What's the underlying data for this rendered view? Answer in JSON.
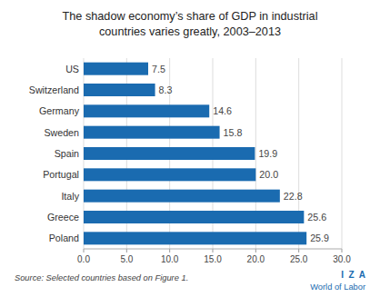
{
  "chart_data": {
    "type": "bar",
    "orientation": "horizontal",
    "title": "The shadow economy’s share of GDP in industrial\ncountries varies greatly, 2003–2013",
    "categories": [
      "US",
      "Switzerland",
      "Germany",
      "Sweden",
      "Spain",
      "Portugal",
      "Italy",
      "Greece",
      "Poland"
    ],
    "values": [
      7.5,
      8.3,
      14.6,
      15.8,
      19.9,
      20.0,
      22.8,
      25.6,
      25.9
    ],
    "value_labels": [
      "7.5",
      "8.3",
      "14.6",
      "15.8",
      "19.9",
      "20.0",
      "22.8",
      "25.6",
      "25.9"
    ],
    "data_labels": true,
    "color": "#1A6BB0",
    "xlim": [
      0,
      30
    ],
    "xticks": [
      {
        "value": 0,
        "label": "0.0"
      },
      {
        "value": 5,
        "label": "5.0"
      },
      {
        "value": 10,
        "label": "10.0"
      },
      {
        "value": 15,
        "label": "15.0"
      },
      {
        "value": 20,
        "label": "20.0"
      },
      {
        "value": 25,
        "label": "25.0"
      },
      {
        "value": 30,
        "label": "30.0"
      }
    ],
    "grid": true,
    "annotations": [
      "Source: Selected countries based on Figure 1.",
      "I  Z  A",
      "World of Labor"
    ]
  }
}
